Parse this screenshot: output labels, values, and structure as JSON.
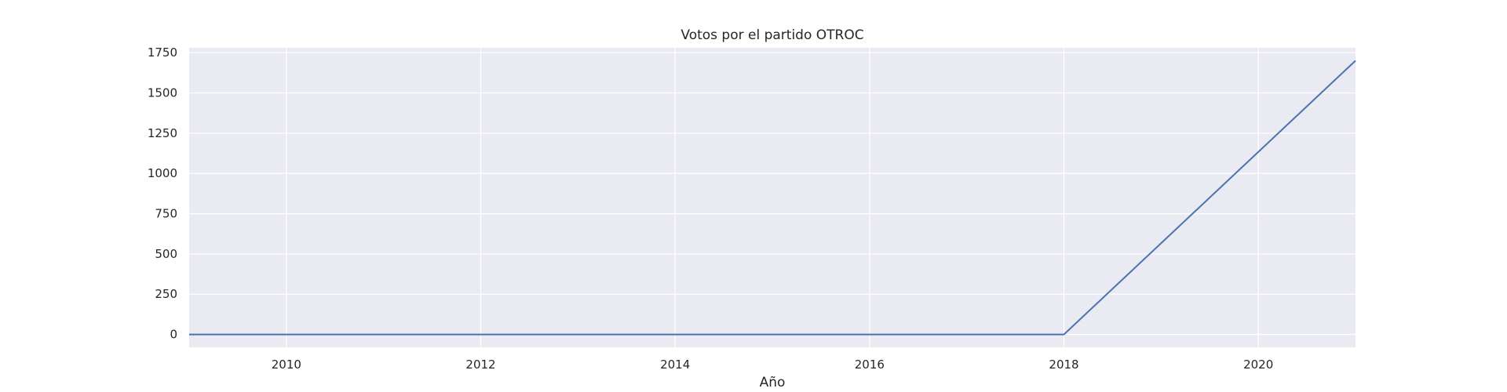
{
  "chart_data": {
    "type": "line",
    "title": "Votos por el partido OTROC",
    "xlabel": "Año",
    "ylabel": "",
    "x": [
      2009,
      2018,
      2021
    ],
    "series": [
      {
        "values": [
          0,
          0,
          1700
        ],
        "color": "#4c72b0"
      }
    ],
    "xlim": [
      2009,
      2021
    ],
    "ylim": [
      -80,
      1780
    ],
    "xticks": [
      2010,
      2012,
      2014,
      2016,
      2018,
      2020
    ],
    "yticks": [
      0,
      250,
      500,
      750,
      1000,
      1250,
      1500,
      1750
    ],
    "grid": true,
    "plot_background": "#eaeaf2",
    "grid_color": "#ffffff"
  }
}
